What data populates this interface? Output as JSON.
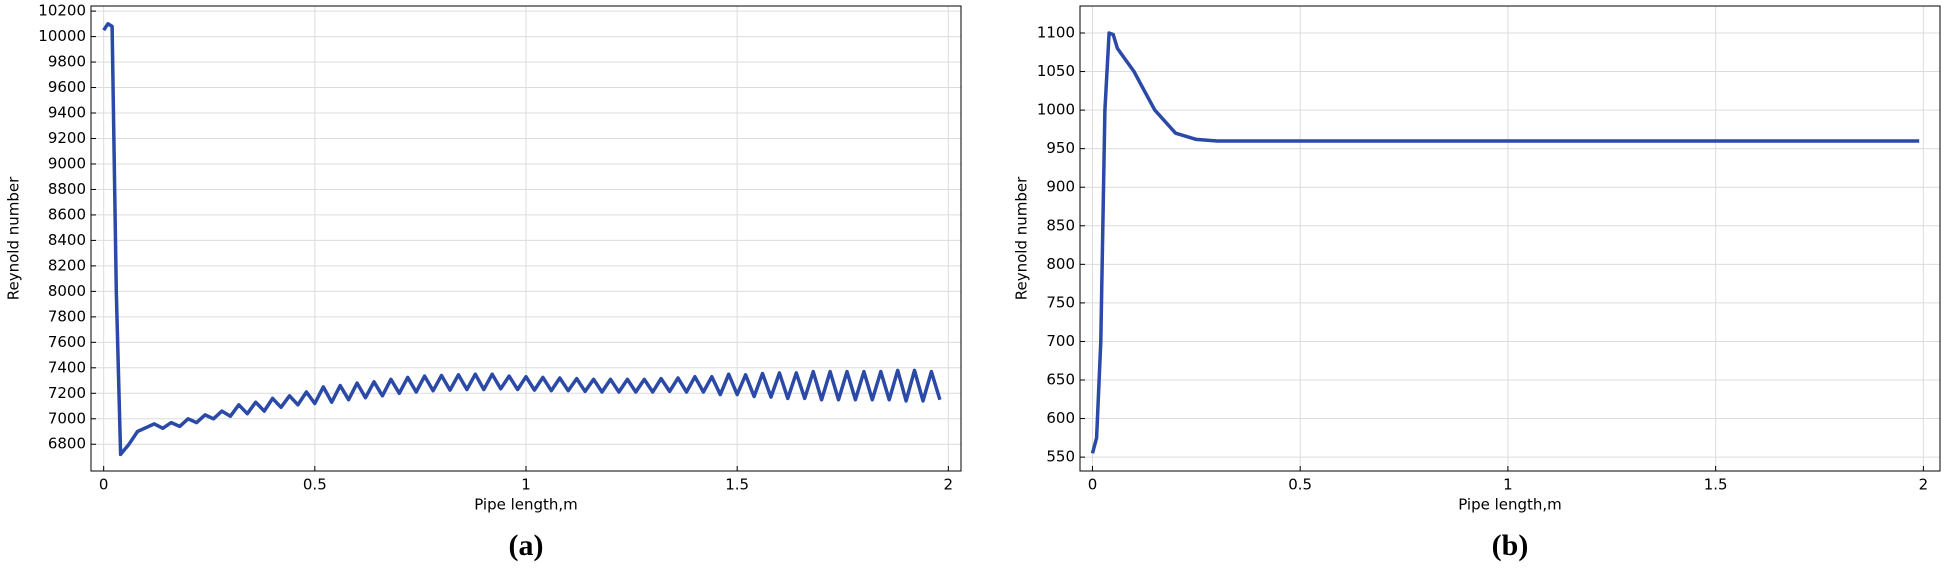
{
  "chart_data": [
    {
      "type": "line",
      "label": "(a)",
      "xlabel": "Pipe length,m",
      "ylabel": "Reynold number",
      "color": "#2b49a6",
      "grid": true,
      "xlim": [
        -0.03,
        2.03
      ],
      "ylim": [
        6590,
        10240
      ],
      "xticks": [
        0,
        0.5,
        1,
        1.5,
        2
      ],
      "yticks": [
        6800,
        7000,
        7200,
        7400,
        7600,
        7800,
        8000,
        8200,
        8400,
        8600,
        8800,
        9000,
        9200,
        9400,
        9600,
        9800,
        10000,
        10200
      ],
      "x": [
        0,
        0.01,
        0.02,
        0.03,
        0.04,
        0.06,
        0.08,
        0.1,
        0.12,
        0.14,
        0.16,
        0.18,
        0.2,
        0.22,
        0.24,
        0.26,
        0.28,
        0.3,
        0.32,
        0.34,
        0.36,
        0.38,
        0.4,
        0.42,
        0.44,
        0.46,
        0.48,
        0.5,
        0.52,
        0.54,
        0.56,
        0.58,
        0.6,
        0.62,
        0.64,
        0.66,
        0.68,
        0.7,
        0.72,
        0.74,
        0.76,
        0.78,
        0.8,
        0.82,
        0.84,
        0.86,
        0.88,
        0.9,
        0.92,
        0.94,
        0.96,
        0.98,
        1,
        1.02,
        1.04,
        1.06,
        1.08,
        1.1,
        1.12,
        1.14,
        1.16,
        1.18,
        1.2,
        1.22,
        1.24,
        1.26,
        1.28,
        1.3,
        1.32,
        1.34,
        1.36,
        1.38,
        1.4,
        1.42,
        1.44,
        1.46,
        1.48,
        1.5,
        1.52,
        1.54,
        1.56,
        1.58,
        1.6,
        1.62,
        1.64,
        1.66,
        1.68,
        1.7,
        1.72,
        1.74,
        1.76,
        1.78,
        1.8,
        1.82,
        1.84,
        1.86,
        1.88,
        1.9,
        1.92,
        1.94,
        1.96,
        1.98
      ],
      "values": [
        10050,
        10100,
        10080,
        8000,
        6720,
        6800,
        6900,
        6930,
        6960,
        6925,
        6970,
        6940,
        7000,
        6970,
        7030,
        7000,
        7060,
        7020,
        7110,
        7040,
        7130,
        7060,
        7160,
        7090,
        7180,
        7110,
        7210,
        7120,
        7250,
        7130,
        7260,
        7150,
        7280,
        7165,
        7290,
        7180,
        7310,
        7200,
        7325,
        7210,
        7335,
        7220,
        7340,
        7225,
        7345,
        7230,
        7350,
        7230,
        7350,
        7235,
        7335,
        7230,
        7330,
        7225,
        7325,
        7220,
        7320,
        7220,
        7315,
        7215,
        7310,
        7210,
        7310,
        7210,
        7310,
        7210,
        7310,
        7210,
        7315,
        7215,
        7320,
        7210,
        7330,
        7210,
        7330,
        7190,
        7350,
        7190,
        7345,
        7175,
        7355,
        7170,
        7360,
        7160,
        7360,
        7160,
        7370,
        7150,
        7370,
        7150,
        7370,
        7150,
        7370,
        7150,
        7370,
        7150,
        7380,
        7140,
        7380,
        7140,
        7370,
        7150
      ]
    },
    {
      "type": "line",
      "label": "(b)",
      "xlabel": "Pipe length,m",
      "ylabel": "Reynold number",
      "color": "#2b49a6",
      "grid": true,
      "xlim": [
        -0.03,
        2.04
      ],
      "ylim": [
        532,
        1135
      ],
      "xticks": [
        0,
        0.5,
        1,
        1.5,
        2
      ],
      "yticks": [
        550,
        600,
        650,
        700,
        750,
        800,
        850,
        900,
        950,
        1000,
        1050,
        1100
      ],
      "x": [
        0,
        0.01,
        0.02,
        0.03,
        0.04,
        0.05,
        0.06,
        0.08,
        0.1,
        0.12,
        0.15,
        0.2,
        0.25,
        0.3,
        0.4,
        0.5,
        1,
        1.5,
        1.99
      ],
      "values": [
        555,
        575,
        700,
        1000,
        1100,
        1098,
        1080,
        1065,
        1050,
        1030,
        1000,
        970,
        962,
        960,
        960,
        960,
        960,
        960,
        960
      ]
    }
  ]
}
